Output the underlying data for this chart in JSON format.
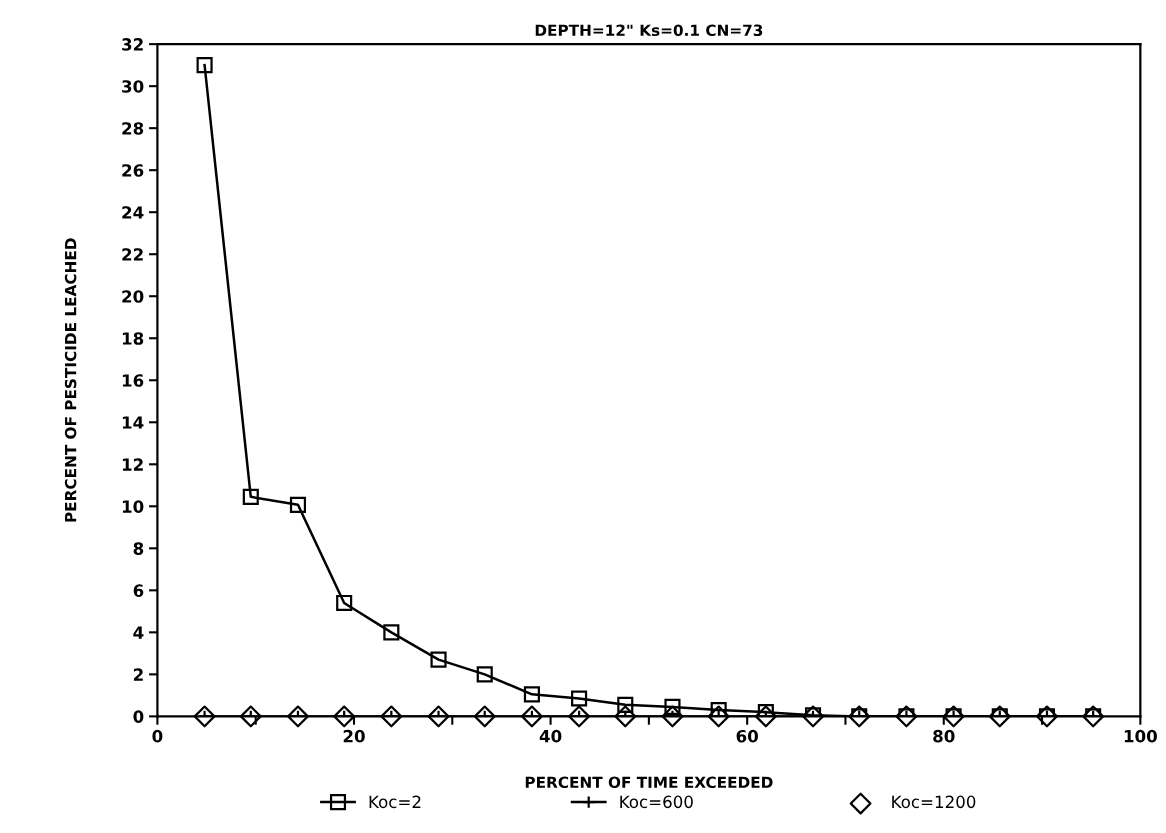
{
  "chart_data": {
    "type": "line",
    "title": "DEPTH=12\" Ks=0.1 CN=73",
    "xlabel": "PERCENT OF TIME EXCEEDED",
    "ylabel": "PERCENT OF PESTICIDE LEACHED",
    "x": [
      4.8,
      9.5,
      14.3,
      19.0,
      23.8,
      28.6,
      33.3,
      38.1,
      42.9,
      47.6,
      52.4,
      57.1,
      61.9,
      66.7,
      71.4,
      76.2,
      81.0,
      85.7,
      90.5,
      95.2
    ],
    "series": [
      {
        "name": "Koc=2",
        "color": "#000000",
        "marker": "square",
        "values": [
          31.0,
          10.45,
          10.07,
          5.4,
          4.0,
          2.7,
          2.0,
          1.05,
          0.85,
          0.55,
          0.45,
          0.3,
          0.2,
          0.05,
          0,
          0,
          0,
          0,
          0,
          0
        ]
      },
      {
        "name": "Koc=600",
        "color": "#000000",
        "marker": "cross",
        "values": [
          0,
          0,
          0,
          0,
          0,
          0,
          0,
          0,
          0,
          0,
          0,
          0,
          0,
          0,
          0,
          0,
          0,
          0,
          0,
          0
        ]
      },
      {
        "name": "Koc=1200",
        "color": "#000000",
        "marker": "diamond",
        "type": "scatter",
        "values": [
          0,
          0,
          0,
          0,
          0,
          0,
          0,
          0,
          0,
          0,
          0,
          0,
          0,
          0,
          0,
          0,
          0,
          0,
          0,
          0
        ]
      }
    ],
    "xlim": [
      0,
      100
    ],
    "xticks": [
      0,
      {
        "value": 10,
        "label": null
      },
      20,
      {
        "value": 30,
        "label": null
      },
      40,
      {
        "value": 50,
        "label": null
      },
      60,
      {
        "value": 70,
        "label": null
      },
      80,
      {
        "value": 90,
        "label": null
      },
      100
    ],
    "ylim": [
      0,
      32
    ],
    "yticks": [
      0,
      2,
      4,
      6,
      8,
      10,
      12,
      14,
      16,
      18,
      20,
      22,
      24,
      26,
      28,
      30,
      32
    ],
    "grid": false,
    "legend": "bottom",
    "line_style": "solid"
  }
}
